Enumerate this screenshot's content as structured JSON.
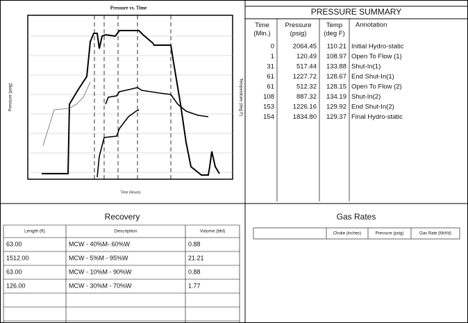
{
  "chart": {
    "title": "Pressure vs. Time",
    "y_label": "Pressure (psig)",
    "y2_label": "Temperature (deg F)",
    "x_label": "Time (Hours)"
  },
  "pressure_summary": {
    "title": "PRESSURE SUMMARY",
    "columns": [
      "Time (Min.)",
      "Pressure (psig)",
      "Temp (deg F)",
      "Annotation"
    ],
    "rows": [
      [
        "0",
        "2064.45",
        "110.21",
        "Initial Hydro-static"
      ],
      [
        "1",
        "120.49",
        "108.97",
        "Open To Flow (1)"
      ],
      [
        "31",
        "517.44",
        "133.88",
        "Shut-In(1)"
      ],
      [
        "61",
        "1227.72",
        "128.67",
        "End Shut-In(1)"
      ],
      [
        "61",
        "512.32",
        "128.15",
        "Open To Flow (2)"
      ],
      [
        "108",
        "887.32",
        "134.19",
        "Shut-In(2)"
      ],
      [
        "153",
        "1226.16",
        "129.92",
        "End Shut-In(2)"
      ],
      [
        "154",
        "1834.80",
        "129.37",
        "Final Hydro-static"
      ]
    ]
  },
  "recovery": {
    "title": "Recovery",
    "columns": [
      "Length (ft)",
      "Description",
      "Volume (bbl)"
    ],
    "rows": [
      [
        "63.00",
        "MCW - 40%M- 60%W",
        "0.88"
      ],
      [
        "1512.00",
        "MCW - 5%M - 95%W",
        "21.21"
      ],
      [
        "63.00",
        "MCW - 10%M - 90%W",
        "0.88"
      ],
      [
        "126.00",
        "MCW - 30%M - 70%W",
        "1.77"
      ]
    ]
  },
  "gas_rates": {
    "title": "Gas Rates",
    "columns": [
      "Choke (inches)",
      "Pressure (psig)",
      "Gas Rate (Mcf/d)"
    ]
  }
}
